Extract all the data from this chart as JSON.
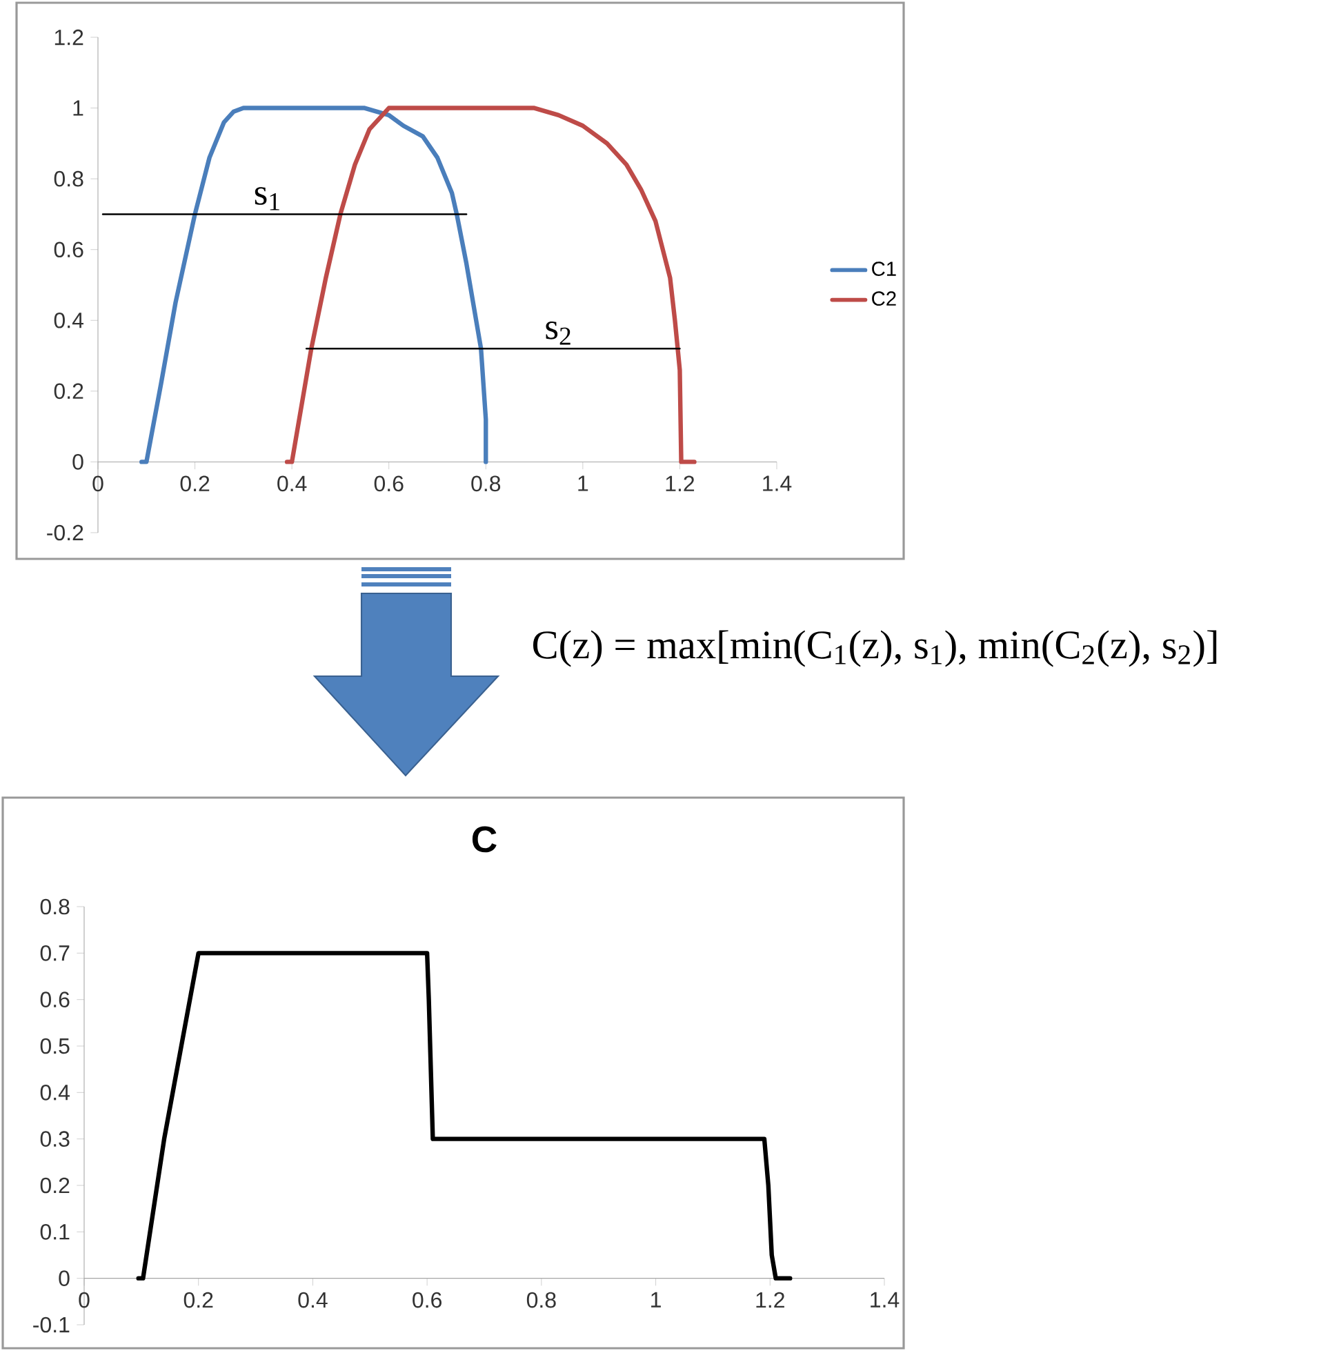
{
  "chart_data": [
    {
      "type": "line",
      "xlim": [
        0,
        1.4
      ],
      "ylim": [
        -0.2,
        1.2
      ],
      "xticks": [
        0,
        0.2,
        0.4,
        0.6,
        0.8,
        1,
        1.2,
        1.4
      ],
      "yticks": [
        -0.2,
        0,
        0.2,
        0.4,
        0.6,
        0.8,
        1,
        1.2
      ],
      "legend": "right",
      "grid": false,
      "series": [
        {
          "name": "C1",
          "color": "#4a7ebb",
          "x": [
            0.09,
            0.1,
            0.13,
            0.16,
            0.2,
            0.23,
            0.26,
            0.28,
            0.3,
            0.55,
            0.6,
            0.63,
            0.67,
            0.7,
            0.73,
            0.74,
            0.76,
            0.78,
            0.79,
            0.8,
            0.8
          ],
          "values": [
            0,
            0,
            0.22,
            0.45,
            0.7,
            0.86,
            0.96,
            0.99,
            1,
            1,
            0.98,
            0.95,
            0.92,
            0.86,
            0.76,
            0.7,
            0.56,
            0.4,
            0.32,
            0.12,
            0
          ]
        },
        {
          "name": "C2",
          "color": "#be4b48",
          "x": [
            0.39,
            0.4,
            0.44,
            0.47,
            0.5,
            0.53,
            0.56,
            0.6,
            0.65,
            0.9,
            0.95,
            1.0,
            1.05,
            1.09,
            1.12,
            1.15,
            1.18,
            1.19,
            1.2,
            1.203,
            1.23
          ],
          "values": [
            0,
            0,
            0.32,
            0.52,
            0.7,
            0.84,
            0.94,
            1,
            1,
            1,
            0.98,
            0.95,
            0.9,
            0.84,
            0.77,
            0.68,
            0.52,
            0.4,
            0.26,
            0,
            0
          ]
        },
        {
          "color": "#000000",
          "x": [
            0.01,
            0.76
          ],
          "values": [
            0.7,
            0.7
          ]
        },
        {
          "color": "#000000",
          "x": [
            0.43,
            1.2
          ],
          "values": [
            0.32,
            0.32
          ]
        }
      ],
      "annotations": [
        "C(z) = max[min(C$_{1}$(z), s$_{1}$), min(C$_{2}$(z), s$_{2}$)]",
        {
          "text": "s$_{1}$",
          "x": 0.35,
          "y": 0.7
        },
        {
          "text": "s$_{2}$",
          "x": 0.95,
          "y": 0.32
        }
      ]
    },
    {
      "type": "line",
      "title": "C",
      "xlim": [
        0,
        1.4
      ],
      "ylim": [
        -0.1,
        0.8
      ],
      "xticks": [
        0,
        0.2,
        0.4,
        0.6,
        0.8,
        1,
        1.2,
        1.4
      ],
      "yticks": [
        -0.1,
        0,
        0.1,
        0.2,
        0.3,
        0.4,
        0.5,
        0.6,
        0.7,
        0.8
      ],
      "grid": false,
      "series": [
        {
          "color": "#000000",
          "x": [
            0.095,
            0.103,
            0.14,
            0.17,
            0.2,
            0.6,
            0.603,
            0.61,
            1.19,
            1.197,
            1.203,
            1.21,
            1.235
          ],
          "values": [
            0,
            0,
            0.3,
            0.5,
            0.7,
            0.7,
            0.6,
            0.3,
            0.3,
            0.2,
            0.05,
            0,
            0
          ]
        }
      ]
    }
  ]
}
